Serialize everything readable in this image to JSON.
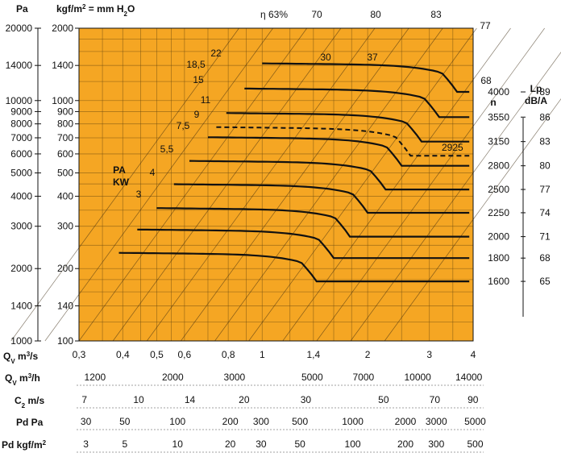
{
  "chart_data": {
    "type": "line",
    "title": "",
    "left_axis_pa": {
      "label": "Pa",
      "ticks": [
        "20000",
        "14000",
        "10000",
        "9000",
        "8000",
        "7000",
        "6000",
        "5000",
        "4000",
        "3000",
        "2000",
        "1400",
        "1000"
      ]
    },
    "left_axis_kgf": {
      "label_main": "kgf/m",
      "label_sup": "2",
      "label_tail": " = mm H",
      "label_sub": "2",
      "label_end": "O",
      "ticks": [
        "2000",
        "1400",
        "1000",
        "900",
        "800",
        "700",
        "600",
        "500",
        "400",
        "300",
        "200",
        "140",
        "100"
      ]
    },
    "efficiency_label": "η 63%",
    "efficiency_lines": [
      "70",
      "80",
      "83",
      "77",
      "68"
    ],
    "power_label_line1": "PA",
    "power_label_line2": "KW",
    "power_labels": [
      "3",
      "4",
      "5,5",
      "7,5",
      "9",
      "11",
      "15",
      "18,5",
      "22",
      "30",
      "37"
    ],
    "speed_header": "n",
    "speed_rpm": [
      "4000",
      "3550",
      "3150",
      "2800",
      "2500",
      "2250",
      "2000",
      "1800",
      "1600"
    ],
    "extra_speed": "2925",
    "lp_header_line1": "Lp",
    "lp_header_line2": "dB/A",
    "lp_values": [
      "89",
      "86",
      "83",
      "80",
      "77",
      "74",
      "71",
      "68",
      "65"
    ],
    "x_axis_qv_s": {
      "label": "Q",
      "label_sub": "V",
      "label_unit": " m",
      "label_sup": "3",
      "label_end": "/s",
      "ticks": [
        "0,3",
        "0,4",
        "0,5",
        "0,6",
        "0,8",
        "1",
        "1,4",
        "2",
        "3",
        "4"
      ]
    },
    "x_axis_qv_h": {
      "label": "Q",
      "label_sub": "V",
      "label_unit": " m",
      "label_sup": "3",
      "label_end": "/h",
      "ticks": [
        "1200",
        "2000",
        "3000",
        "5000",
        "7000",
        "10000",
        "14000"
      ]
    },
    "x_axis_c2": {
      "label": "C",
      "label_sub": "2",
      "label_end": " m/s",
      "ticks": [
        "7",
        "10",
        "14",
        "20",
        "30",
        "50",
        "70",
        "90"
      ]
    },
    "x_axis_pd_pa": {
      "label": "Pd Pa",
      "ticks": [
        "30",
        "50",
        "100",
        "200",
        "300",
        "500",
        "1000",
        "2000",
        "3000",
        "5000"
      ]
    },
    "x_axis_pd_kgf": {
      "label": "Pd kgf/m",
      "label_sup": "2",
      "ticks": [
        "3",
        "5",
        "10",
        "20",
        "30",
        "50",
        "100",
        "200",
        "300",
        "500"
      ]
    },
    "series": [
      {
        "name": "4000",
        "flat_y": 1400,
        "x_start": 1.0,
        "x_knee": 3.6
      },
      {
        "name": "3550",
        "flat_y": 1100,
        "x_start": 0.89,
        "x_knee": 3.2
      },
      {
        "name": "3150",
        "flat_y": 870,
        "x_start": 0.79,
        "x_knee": 2.85
      },
      {
        "name": "2800",
        "flat_y": 690,
        "x_start": 0.7,
        "x_knee": 2.5
      },
      {
        "name": "2500",
        "flat_y": 550,
        "x_start": 0.62,
        "x_knee": 2.25
      },
      {
        "name": "2250",
        "flat_y": 440,
        "x_start": 0.56,
        "x_knee": 2.0
      },
      {
        "name": "2000",
        "flat_y": 350,
        "x_start": 0.5,
        "x_knee": 1.78
      },
      {
        "name": "1800",
        "flat_y": 285,
        "x_start": 0.44,
        "x_knee": 1.6
      },
      {
        "name": "1600",
        "flat_y": 228,
        "x_start": 0.39,
        "x_knee": 1.43
      }
    ],
    "extra_series": {
      "name": "2925",
      "flat_y": 760,
      "x_start": 0.74,
      "x_knee": 2.65
    },
    "xlim": [
      0.3,
      4
    ],
    "ylim_kgf": [
      100,
      2000
    ],
    "x_scale": "log",
    "y_scale": "log",
    "background_color": "#f5a623",
    "grid": true
  }
}
